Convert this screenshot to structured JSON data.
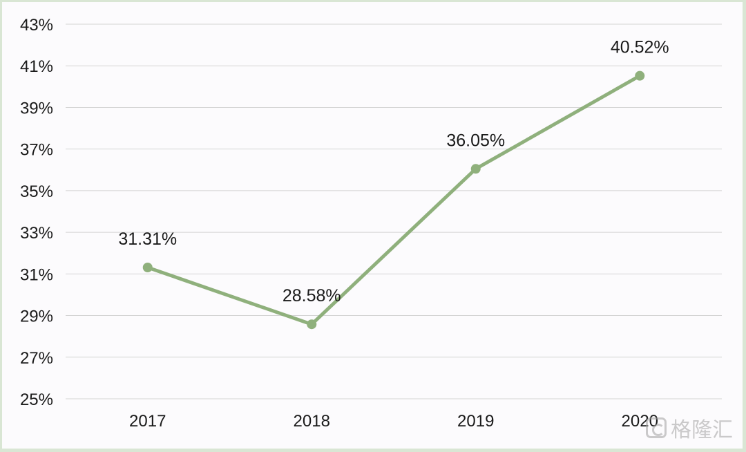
{
  "chart_data": {
    "type": "line",
    "title": "",
    "xlabel": "",
    "ylabel": "",
    "categories": [
      "2017",
      "2018",
      "2019",
      "2020"
    ],
    "series": [
      {
        "values": [
          31.31,
          28.58,
          36.05,
          40.52
        ],
        "data_labels": [
          "31.31%",
          "28.58%",
          "36.05%",
          "40.52%"
        ],
        "color": "#8fb07c"
      }
    ],
    "ylim": [
      25,
      43
    ],
    "yticks": [
      25,
      27,
      29,
      31,
      33,
      35,
      37,
      39,
      41,
      43
    ],
    "ytick_labels": [
      "25%",
      "27%",
      "29%",
      "31%",
      "33%",
      "35%",
      "37%",
      "39%",
      "41%",
      "43%"
    ],
    "grid": "horizontal",
    "legend": "none",
    "gridline_color": "#d4d4d4",
    "background": "#fcfbfd"
  },
  "watermark": {
    "text": "格隆汇",
    "icon": "brand-logo-icon"
  }
}
